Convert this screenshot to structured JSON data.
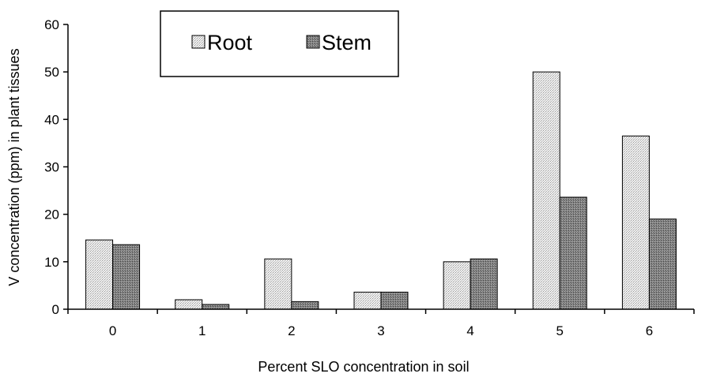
{
  "chart_data": {
    "type": "bar",
    "title": "",
    "xlabel": "Percent SLO concentration in soil",
    "ylabel": "V concentration (ppm) in plant tissues",
    "categories": [
      "0",
      "1",
      "2",
      "3",
      "4",
      "5",
      "6"
    ],
    "series": [
      {
        "name": "Root",
        "values": [
          14.6,
          2.0,
          10.6,
          3.6,
          10.0,
          50.0,
          36.5
        ],
        "pattern": "light-stipple",
        "color": "#e6e6e6"
      },
      {
        "name": "Stem",
        "values": [
          13.6,
          1.0,
          1.6,
          3.6,
          10.6,
          23.6,
          19.0
        ],
        "pattern": "dark-stipple",
        "color": "#8a8a8a"
      }
    ],
    "ylim": [
      0,
      60
    ],
    "yticks": [
      0,
      10,
      20,
      30,
      40,
      50,
      60
    ],
    "grid": false,
    "legend": "top-left"
  }
}
